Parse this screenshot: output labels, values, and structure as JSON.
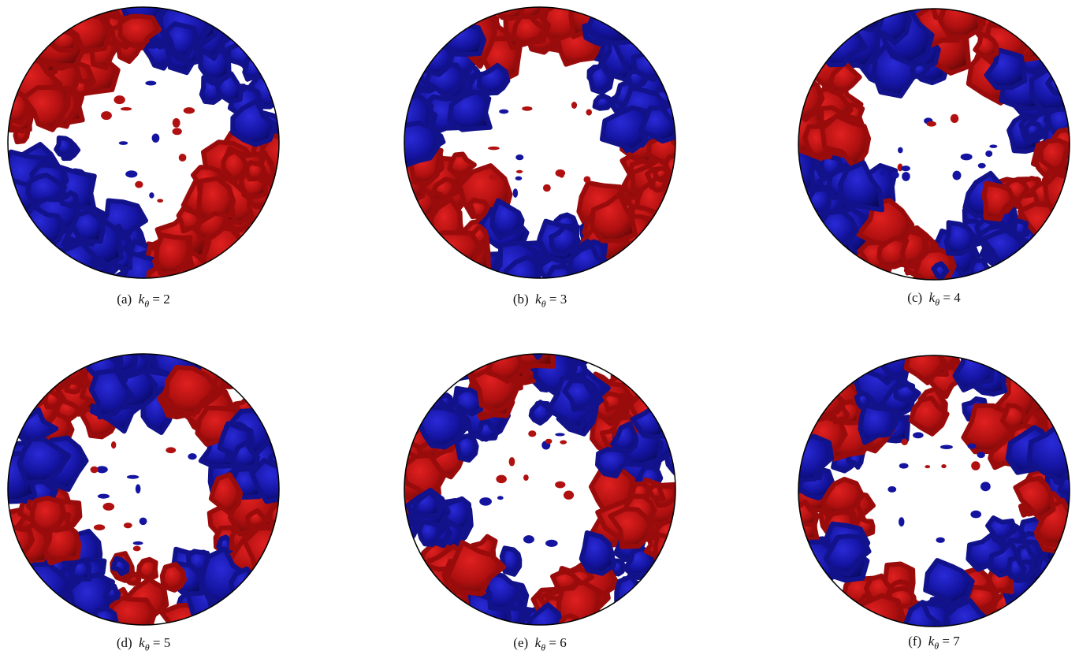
{
  "panels": [
    {
      "label": "(a)",
      "variable": "k",
      "subscript": "θ",
      "relation": "=",
      "value": 2
    },
    {
      "label": "(b)",
      "variable": "k",
      "subscript": "θ",
      "relation": "=",
      "value": 3
    },
    {
      "label": "(c)",
      "variable": "k",
      "subscript": "θ",
      "relation": "=",
      "value": 4
    },
    {
      "label": "(d)",
      "variable": "k",
      "subscript": "θ",
      "relation": "=",
      "value": 5
    },
    {
      "label": "(e)",
      "variable": "k",
      "subscript": "θ",
      "relation": "=",
      "value": 6
    },
    {
      "label": "(f)",
      "variable": "k",
      "subscript": "θ",
      "relation": "=",
      "value": 7
    }
  ]
}
